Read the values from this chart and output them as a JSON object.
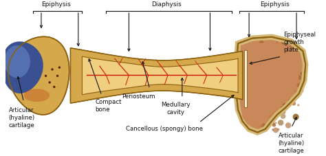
{
  "bg_color": "#ffffff",
  "bone_color": "#D4A84B",
  "bone_light": "#E8C878",
  "bone_highlight": "#F0D898",
  "medullary_color": "#F0D080",
  "medullary_inner": "#E8C060",
  "cartilage_blue_dark": "#3A5090",
  "cartilage_blue_light": "#7090D0",
  "spongy_base": "#C8885A",
  "spongy_dark": "#A06030",
  "spongy_light": "#E0A870",
  "border_color": "#8B6010",
  "border_dark": "#6B4800",
  "blood_color": "#CC1100",
  "text_color": "#111111",
  "white_line": "#F8EED8",
  "label_epiphysis_left": "Epiphysis",
  "label_epiphysis_right": "Epiphysis",
  "label_diaphysis": "Diaphysis",
  "label_articular_left": "Articular\n(hyaline)\ncartilage",
  "label_compact": "Compact\nbone",
  "label_periosteum": "Periosteum",
  "label_medullary": "Medullary\ncavity",
  "label_cancellous": "Cancellous (spongy) bone",
  "label_epiphyseal": "Epiphyseal\ngrowth\nplate",
  "label_articular_right": "Articular\n(hyaline)\ncartilage",
  "fig_width": 4.74,
  "fig_height": 2.28,
  "dpi": 100
}
